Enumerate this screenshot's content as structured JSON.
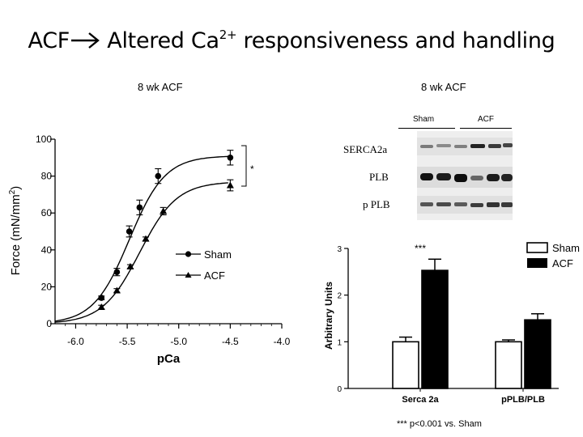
{
  "slide": {
    "title_pre": "ACF",
    "title_ca": "Altered Ca",
    "title_sup": "2+",
    "title_post": " responsiveness and handling",
    "left_label": "8 wk ACF",
    "right_label": "8 wk ACF",
    "footnote": "*** p<0.001 vs. Sham"
  },
  "blot": {
    "group_labels": [
      "Sham",
      "ACF"
    ],
    "bands": [
      "SERCA2a",
      "PLB",
      "pPLB"
    ],
    "band_display": [
      "SERCA2a",
      "PLB",
      "p PLB"
    ]
  },
  "chart_data": [
    {
      "type": "line",
      "title": "",
      "xlabel": "pCa",
      "ylabel": "Force (mN/mm²)",
      "ylabel_base": "Force (mN/mm",
      "ylabel_sup": "2",
      "ylabel_end": ")",
      "xlim": [
        -6.2,
        -4.0
      ],
      "ylim": [
        0,
        100
      ],
      "x_reversed": true,
      "xticks": [
        "-6.0",
        "-5.5",
        "-5.0",
        "-4.5",
        "-4.0"
      ],
      "xtick_values": [
        -6.0,
        -5.5,
        -5.0,
        -4.5,
        -4.0
      ],
      "yticks": [
        "0",
        "20",
        "40",
        "60",
        "80",
        "100"
      ],
      "ytick_values": [
        0,
        20,
        40,
        60,
        80,
        100
      ],
      "legend_position": "center-right",
      "annotation": "*",
      "series": [
        {
          "name": "Sham",
          "marker": "circle",
          "x": [
            -5.75,
            -5.6,
            -5.48,
            -5.38,
            -5.2,
            -4.5
          ],
          "y": [
            14,
            28,
            50,
            63,
            80,
            90
          ],
          "err": [
            1,
            2,
            3,
            4,
            4,
            4
          ],
          "fit": {
            "min": 0,
            "max": 91,
            "ec50_pca": -5.48,
            "hill": 2.5
          }
        },
        {
          "name": "ACF",
          "marker": "triangle",
          "x": [
            -5.75,
            -5.6,
            -5.47,
            -5.32,
            -5.15,
            -4.5
          ],
          "y": [
            9,
            18,
            31,
            46,
            61,
            75
          ],
          "err": [
            1,
            1,
            1,
            1,
            2,
            3
          ],
          "fit": {
            "min": 0,
            "max": 77,
            "ec50_pca": -5.38,
            "hill": 2.4
          }
        }
      ]
    },
    {
      "type": "bar",
      "title": "",
      "xlabel": "",
      "ylabel": "Arbitrary Units",
      "ylim": [
        0,
        3
      ],
      "yticks": [
        "0",
        "1",
        "2",
        "3"
      ],
      "ytick_values": [
        0,
        1,
        2,
        3
      ],
      "categories": [
        "Serca 2a",
        "pPLB/PLB"
      ],
      "legend_position": "top-right",
      "annotation": "***",
      "series": [
        {
          "name": "Sham",
          "color": "#ffffff",
          "values": [
            1.0,
            1.0
          ],
          "err": [
            0.1,
            0.04
          ]
        },
        {
          "name": "ACF",
          "color": "#000000",
          "values": [
            2.53,
            1.47
          ],
          "err": [
            0.24,
            0.13
          ]
        }
      ]
    }
  ]
}
